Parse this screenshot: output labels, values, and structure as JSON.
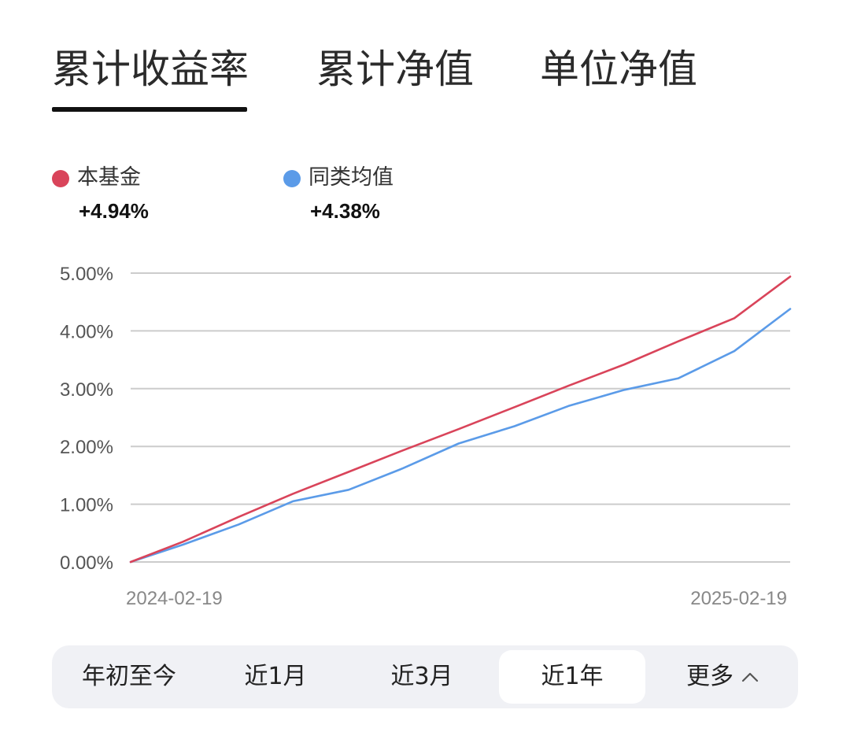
{
  "tabs": [
    {
      "label": "累计收益率",
      "active": true
    },
    {
      "label": "累计净值",
      "active": false
    },
    {
      "label": "单位净值",
      "active": false
    }
  ],
  "legend": [
    {
      "name": "本基金",
      "value": "+4.94%",
      "color": "#d9445a"
    },
    {
      "name": "同类均值",
      "value": "+4.38%",
      "color": "#5b9be8"
    }
  ],
  "chart_data": {
    "type": "line",
    "title": "",
    "xlabel": "",
    "ylabel": "",
    "x_tick_labels": [
      "2024-02-19",
      "2025-02-19"
    ],
    "y_tick_labels": [
      "5.00%",
      "4.00%",
      "3.00%",
      "2.00%",
      "1.00%",
      "0.00%"
    ],
    "ylim": [
      0,
      5
    ],
    "y_unit": "%",
    "grid": true,
    "x_range": [
      "2024-02-19",
      "2025-02-19"
    ],
    "series": [
      {
        "name": "本基金",
        "color": "#d9445a",
        "points": [
          [
            "2024-02-19",
            0.0
          ],
          [
            "2024-03-19",
            0.35
          ],
          [
            "2024-04-19",
            0.78
          ],
          [
            "2024-05-19",
            1.18
          ],
          [
            "2024-06-19",
            1.56
          ],
          [
            "2024-07-19",
            1.93
          ],
          [
            "2024-08-19",
            2.3
          ],
          [
            "2024-09-19",
            2.68
          ],
          [
            "2024-10-19",
            3.05
          ],
          [
            "2024-11-19",
            3.42
          ],
          [
            "2024-12-19",
            3.82
          ],
          [
            "2025-01-19",
            4.22
          ],
          [
            "2025-02-19",
            4.94
          ]
        ]
      },
      {
        "name": "同类均值",
        "color": "#5b9be8",
        "points": [
          [
            "2024-02-19",
            0.0
          ],
          [
            "2024-03-19",
            0.3
          ],
          [
            "2024-04-19",
            0.65
          ],
          [
            "2024-05-19",
            1.05
          ],
          [
            "2024-06-19",
            1.25
          ],
          [
            "2024-07-19",
            1.62
          ],
          [
            "2024-08-19",
            2.05
          ],
          [
            "2024-09-19",
            2.35
          ],
          [
            "2024-10-19",
            2.7
          ],
          [
            "2024-11-19",
            2.98
          ],
          [
            "2024-12-19",
            3.18
          ],
          [
            "2025-01-19",
            3.65
          ],
          [
            "2025-02-19",
            4.38
          ]
        ]
      }
    ]
  },
  "range_options": [
    {
      "label": "年初至今",
      "selected": false
    },
    {
      "label": "近1月",
      "selected": false
    },
    {
      "label": "近3月",
      "selected": false
    },
    {
      "label": "近1年",
      "selected": true
    },
    {
      "label": "更多",
      "selected": false,
      "icon": "chevron-up-icon"
    }
  ],
  "colors": {
    "grid": "#cccccc",
    "axis_text": "#555555",
    "date_text": "#888888"
  }
}
